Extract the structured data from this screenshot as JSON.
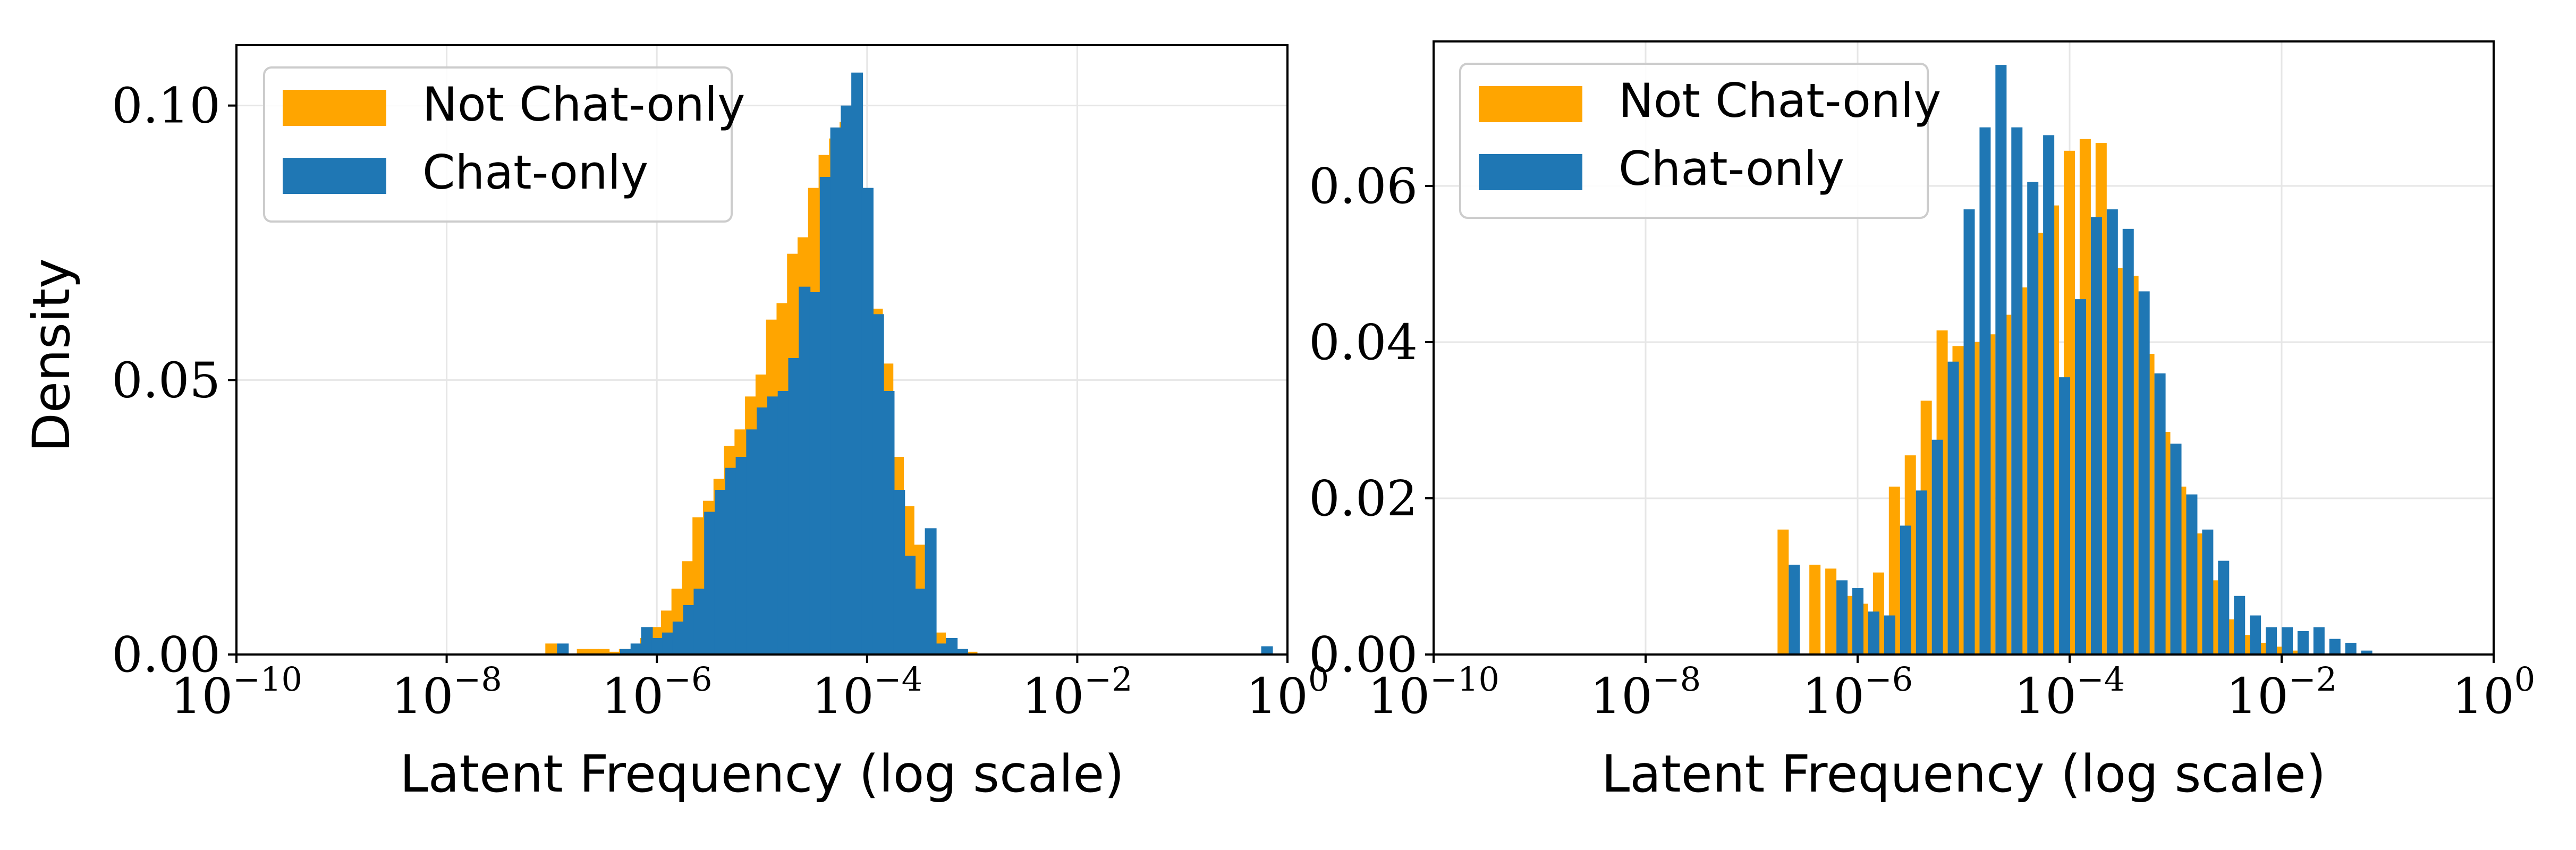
{
  "chart_data": [
    {
      "type": "bar",
      "xlabel": "Latent Frequency (log scale)",
      "ylabel": "Density",
      "x_scale": "log",
      "xlim": [
        1e-10,
        1
      ],
      "ylim": [
        0,
        0.111
      ],
      "x_ticks": [
        {
          "base": "10",
          "exp": "−10"
        },
        {
          "base": "10",
          "exp": "−8"
        },
        {
          "base": "10",
          "exp": "−6"
        },
        {
          "base": "10",
          "exp": "−4"
        },
        {
          "base": "10",
          "exp": "−2"
        },
        {
          "base": "10",
          "exp": "0"
        }
      ],
      "y_ticks": [
        "0.00",
        "0.05",
        "0.10"
      ],
      "y_tick_values": [
        0,
        0.05,
        0.1
      ],
      "grid": true,
      "legend_position": "top-left",
      "x_values_log10": [
        -6.95,
        -6.85,
        -6.75,
        -6.65,
        -6.55,
        -6.45,
        -6.35,
        -6.25,
        -6.15,
        -6.05,
        -5.95,
        -5.85,
        -5.75,
        -5.65,
        -5.55,
        -5.45,
        -5.35,
        -5.25,
        -5.15,
        -5.05,
        -4.95,
        -4.85,
        -4.75,
        -4.65,
        -4.55,
        -4.45,
        -4.35,
        -4.25,
        -4.15,
        -4.05,
        -3.95,
        -3.85,
        -3.75,
        -3.65,
        -3.55,
        -3.45,
        -3.35,
        -3.25,
        -3.15,
        -3.05,
        -2.95,
        -2.85,
        -2.75,
        -2.65,
        -2.55,
        -2.45,
        -2.35,
        -2.25,
        -2.15,
        -2.05,
        -1.95,
        -1.85,
        -1.75,
        -1.65,
        -1.55,
        -1.45,
        -0.25
      ],
      "series": [
        {
          "name": "Not Chat-only",
          "color": "#FFA500",
          "values": [
            0.002,
            0.001,
            0,
            0.001,
            0.001,
            0.001,
            0.0005,
            0.001,
            0.001,
            0.003,
            0.005,
            0.008,
            0.012,
            0.017,
            0.025,
            0.028,
            0.032,
            0.038,
            0.041,
            0.047,
            0.051,
            0.061,
            0.064,
            0.073,
            0.076,
            0.085,
            0.091,
            0.094,
            0.097,
            0.096,
            0.082,
            0.063,
            0.053,
            0.036,
            0.027,
            0.02,
            0.012,
            0.004,
            0.002,
            0.001,
            0.0005,
            0,
            0,
            0,
            0,
            0,
            0,
            0,
            0,
            0,
            0,
            0,
            0,
            0,
            0,
            0,
            0
          ]
        },
        {
          "name": "Chat-only",
          "color": "#1F77B4",
          "values": [
            0.002,
            0,
            0,
            0,
            0,
            0,
            0.001,
            0.002,
            0.005,
            0.003,
            0.004,
            0.006,
            0.009,
            0.012,
            0.026,
            0.03,
            0.034,
            0.036,
            0.041,
            0.045,
            0.047,
            0.048,
            0.054,
            0.067,
            0.066,
            0.087,
            0.096,
            0.1,
            0.106,
            0.085,
            0.062,
            0.048,
            0.03,
            0.018,
            0.012,
            0.023,
            0.002,
            0.003,
            0.001,
            0,
            0,
            0,
            0,
            0,
            0,
            0,
            0,
            0,
            0,
            0,
            0,
            0,
            0,
            0,
            0,
            0,
            0.0015
          ]
        }
      ]
    },
    {
      "type": "bar",
      "xlabel": "Latent Frequency (log scale)",
      "ylabel": "",
      "x_scale": "log",
      "xlim": [
        1e-10,
        1
      ],
      "ylim": [
        0,
        0.0785
      ],
      "x_ticks": [
        {
          "base": "10",
          "exp": "−10"
        },
        {
          "base": "10",
          "exp": "−8"
        },
        {
          "base": "10",
          "exp": "−6"
        },
        {
          "base": "10",
          "exp": "−4"
        },
        {
          "base": "10",
          "exp": "−2"
        },
        {
          "base": "10",
          "exp": "0"
        }
      ],
      "y_ticks": [
        "0.00",
        "0.02",
        "0.04",
        "0.06"
      ],
      "y_tick_values": [
        0,
        0.02,
        0.04,
        0.06
      ],
      "grid": true,
      "legend_position": "top-left",
      "x_values_log10": [
        -6.65,
        -6.35,
        -6.2,
        -6.05,
        -5.9,
        -5.75,
        -5.6,
        -5.45,
        -5.3,
        -5.15,
        -5.0,
        -4.85,
        -4.7,
        -4.55,
        -4.4,
        -4.25,
        -4.1,
        -3.95,
        -3.8,
        -3.65,
        -3.5,
        -3.35,
        -3.2,
        -3.05,
        -2.9,
        -2.75,
        -2.6,
        -2.45,
        -2.3,
        -2.15,
        -2.0,
        -1.85,
        -1.7,
        -1.55,
        -1.4,
        -1.25,
        -1.1,
        -0.95,
        -0.8
      ],
      "series": [
        {
          "name": "Not Chat-only",
          "color": "#FFA500",
          "values": [
            0.016,
            0.0115,
            0.011,
            0.0075,
            0.0065,
            0.0105,
            0.0215,
            0.0255,
            0.0325,
            0.0415,
            0.0395,
            0.04,
            0.041,
            0.0435,
            0.047,
            0.054,
            0.0575,
            0.0645,
            0.066,
            0.0655,
            0.0495,
            0.0485,
            0.0385,
            0.0285,
            0.0215,
            0.0155,
            0.0095,
            0.0045,
            0.0025,
            0.0015,
            0.001,
            0.0005,
            0,
            0,
            0,
            0,
            0,
            0,
            0
          ]
        },
        {
          "name": "Chat-only",
          "color": "#1F77B4",
          "values": [
            0.0115,
            0,
            0.0095,
            0.0085,
            0.0055,
            0.005,
            0.0165,
            0.021,
            0.0275,
            0.0375,
            0.057,
            0.0675,
            0.0755,
            0.0675,
            0.0605,
            0.0665,
            0.0355,
            0.0455,
            0.056,
            0.057,
            0.0545,
            0.0465,
            0.036,
            0.027,
            0.0205,
            0.016,
            0.012,
            0.0075,
            0.005,
            0.0035,
            0.0035,
            0.003,
            0.0035,
            0.002,
            0.0015,
            0.0005,
            0,
            0,
            0
          ]
        }
      ]
    }
  ]
}
